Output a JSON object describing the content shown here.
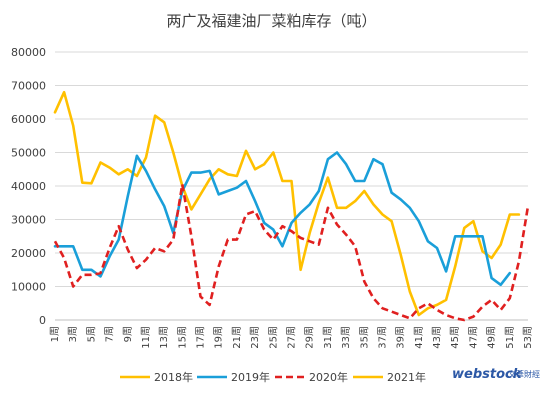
{
  "chart_data": {
    "type": "line",
    "title": "两广及福建油厂菜粕库存（吨）",
    "ylim": [
      0,
      80000
    ],
    "yticks": [
      0,
      10000,
      20000,
      30000,
      40000,
      50000,
      60000,
      70000,
      80000
    ],
    "xlim": [
      1,
      53
    ],
    "xticks": [
      "1周",
      "3周",
      "5周",
      "7周",
      "9周",
      "11周",
      "13周",
      "15周",
      "17周",
      "19周",
      "21周",
      "23周",
      "25周",
      "27周",
      "29周",
      "31周",
      "33周",
      "35周",
      "37周",
      "39周",
      "41周",
      "43周",
      "45周",
      "47周",
      "49周",
      "51周",
      "53周"
    ],
    "grid": "horizontal",
    "legend_position": "bottom",
    "series": [
      {
        "name": "2018年",
        "color": "#ffc000",
        "dash": "solid",
        "x": [
          1,
          2,
          3,
          4,
          5,
          6,
          7,
          8,
          9,
          10,
          11,
          12,
          13,
          14,
          15,
          16,
          17,
          18,
          19,
          20,
          21,
          22,
          23,
          24,
          25,
          26,
          27,
          28,
          29,
          30,
          31,
          32,
          33,
          34,
          35,
          36,
          37,
          38,
          39,
          40,
          41,
          42,
          43,
          44,
          45,
          46,
          47,
          48,
          49,
          50,
          51,
          52
        ],
        "values": [
          62000,
          68000,
          58000,
          41000,
          40800,
          47000,
          45500,
          43500,
          45000,
          43000,
          48500,
          61000,
          59000,
          50000,
          40000,
          33000,
          37500,
          42000,
          45000,
          43500,
          43000,
          50500,
          45000,
          46500,
          50000,
          41500,
          41500,
          15000,
          26000,
          35000,
          42500,
          33500,
          33500,
          35500,
          38500,
          34500,
          31500,
          29500,
          19500,
          8500,
          1500,
          3500,
          4500,
          6000,
          16000,
          27500,
          29500,
          20500,
          18500,
          22500,
          31500,
          31500
        ]
      },
      {
        "name": "2019年",
        "color": "#1a9fd9",
        "dash": "solid",
        "x": [
          1,
          2,
          3,
          4,
          5,
          6,
          7,
          8,
          9,
          10,
          11,
          12,
          13,
          14,
          15,
          16,
          17,
          18,
          19,
          20,
          21,
          22,
          23,
          24,
          25,
          26,
          27,
          28,
          29,
          30,
          31,
          32,
          33,
          34,
          35,
          36,
          37,
          38,
          39,
          40,
          41,
          42,
          43,
          44,
          45,
          46,
          47,
          48,
          49,
          50,
          51
        ],
        "values": [
          22000,
          22000,
          22000,
          15000,
          15000,
          13000,
          19000,
          24000,
          37000,
          49000,
          44500,
          39000,
          34000,
          26000,
          38500,
          44000,
          44000,
          44500,
          37500,
          38500,
          39500,
          41500,
          35500,
          29000,
          27000,
          22000,
          29000,
          32000,
          34500,
          38500,
          48000,
          50000,
          46500,
          41500,
          41500,
          48000,
          46500,
          38000,
          36000,
          33500,
          29500,
          23500,
          21500,
          14500,
          25000,
          25000,
          25000,
          25000,
          12500,
          10500,
          14000
        ]
      },
      {
        "name": "2020年",
        "color": "#e02020",
        "dash": "dashed",
        "x": [
          1,
          2,
          3,
          4,
          5,
          6,
          7,
          8,
          9,
          10,
          11,
          12,
          13,
          14,
          15,
          16,
          17,
          18,
          19,
          20,
          21,
          22,
          23,
          24,
          25,
          26,
          27,
          28,
          29,
          30,
          31,
          32,
          33,
          34,
          35,
          36,
          37,
          38,
          39,
          40,
          41,
          42,
          43,
          44,
          45,
          46,
          47,
          48,
          49,
          50,
          51,
          52,
          53
        ],
        "values": [
          23500,
          18500,
          10000,
          13500,
          13500,
          14000,
          21500,
          28000,
          21000,
          15500,
          18000,
          21500,
          20500,
          24000,
          40500,
          25000,
          7000,
          4500,
          16000,
          24000,
          24000,
          31500,
          32500,
          27000,
          24000,
          28000,
          26500,
          24500,
          23500,
          22500,
          33500,
          28500,
          25500,
          22000,
          11500,
          6500,
          3500,
          2500,
          1500,
          500,
          3500,
          5000,
          3000,
          1500,
          500,
          0,
          1000,
          4000,
          6000,
          3000,
          6500,
          17500,
          34000
        ]
      },
      {
        "name": "2021年",
        "color": "#ffc000",
        "dash": "solid",
        "x": [],
        "values": []
      }
    ]
  },
  "watermark": {
    "brand": "webstock",
    "sub": "文華財經"
  }
}
